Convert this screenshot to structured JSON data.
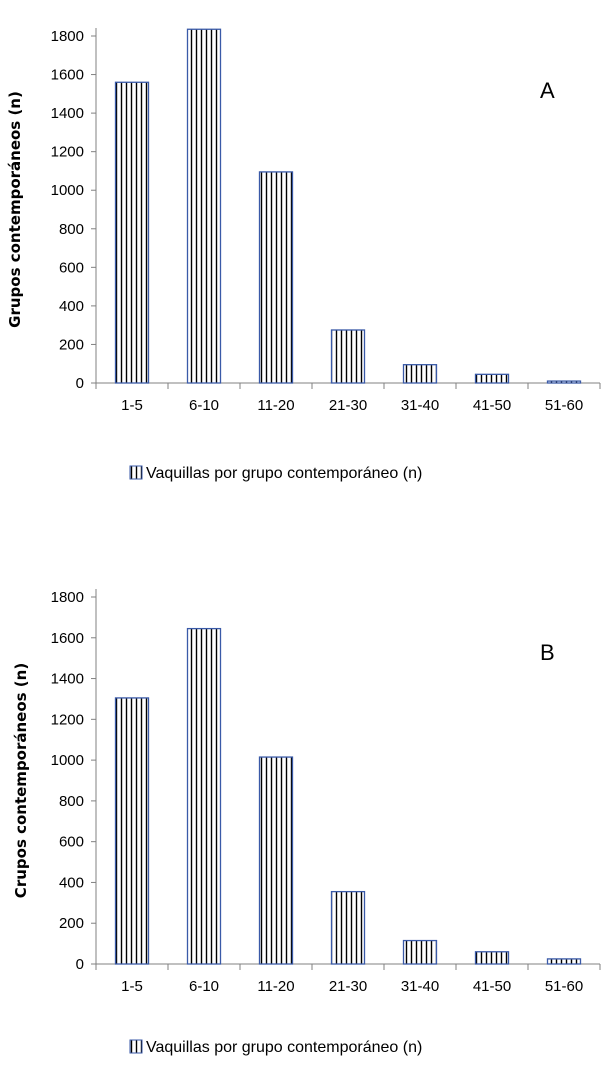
{
  "chart_data": [
    {
      "type": "bar",
      "panel_label": "A",
      "ylabel": "Grupos contemporáneos (n)",
      "categories": [
        "1-5",
        "6-10",
        "11-20",
        "21-30",
        "31-40",
        "41-50",
        "51-60"
      ],
      "series": [
        {
          "name": "Vaquillas por grupo contemporáneo (n)",
          "values": [
            1560,
            1835,
            1095,
            275,
            95,
            45,
            10
          ]
        }
      ],
      "yticks": [
        0,
        200,
        400,
        600,
        800,
        1000,
        1200,
        1400,
        1600,
        1800
      ],
      "ylim": [
        0,
        1800
      ],
      "legend": "bottom",
      "grid": false,
      "colors": {
        "bar_edge": "#3a5aa8",
        "hatch": "#000000",
        "axis": "#808080"
      }
    },
    {
      "type": "bar",
      "panel_label": "B",
      "ylabel": "Crupos contemporáneos (n)",
      "categories": [
        "1-5",
        "6-10",
        "11-20",
        "21-30",
        "31-40",
        "41-50",
        "51-60"
      ],
      "series": [
        {
          "name": "Vaquillas por grupo contemporáneo (n)",
          "values": [
            1305,
            1645,
            1015,
            355,
            115,
            60,
            25
          ]
        }
      ],
      "yticks": [
        0,
        200,
        400,
        600,
        800,
        1000,
        1200,
        1400,
        1600,
        1800
      ],
      "ylim": [
        0,
        1800
      ],
      "legend": "bottom",
      "grid": false,
      "colors": {
        "bar_edge": "#3a5aa8",
        "hatch": "#000000",
        "axis": "#808080"
      }
    }
  ]
}
